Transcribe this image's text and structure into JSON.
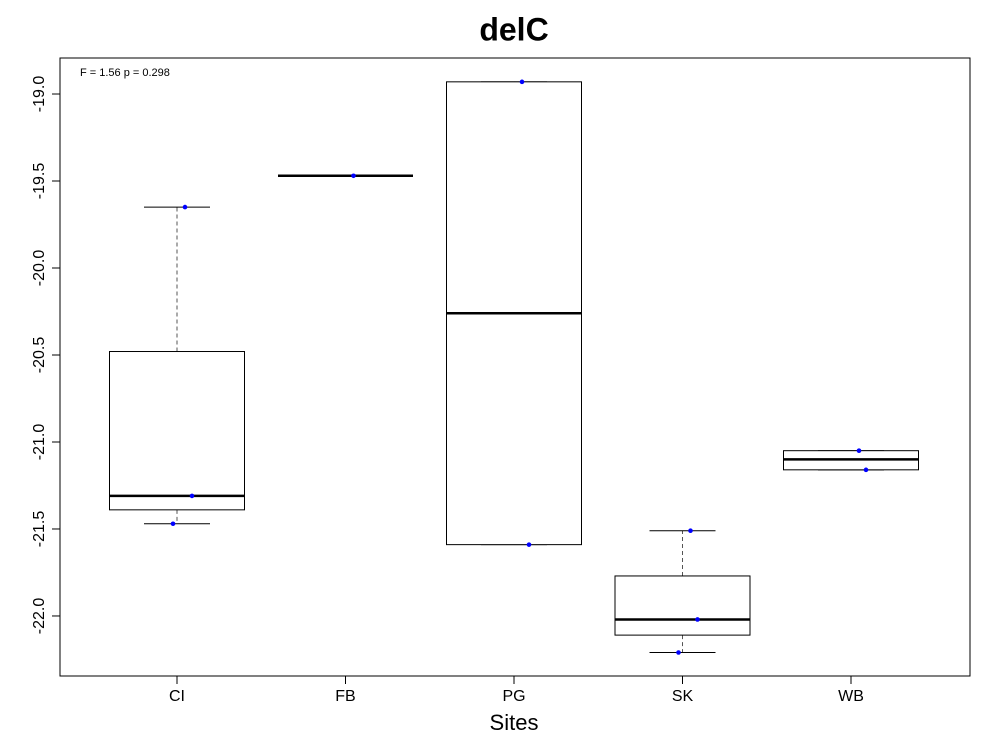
{
  "chart_data": {
    "type": "box",
    "title": "delC",
    "xlabel": "Sites",
    "annotation": "F = 1.56 p = 0.298",
    "categories": [
      "CI",
      "FB",
      "PG",
      "SK",
      "WB"
    ],
    "boxes": [
      {
        "whisker_low": -21.47,
        "q1": -21.39,
        "median": -21.31,
        "q3": -20.48,
        "whisker_high": -19.65,
        "points": [
          -19.65,
          -21.31,
          -21.47
        ]
      },
      {
        "whisker_low": -19.47,
        "q1": -19.47,
        "median": -19.47,
        "q3": -19.47,
        "whisker_high": -19.47,
        "points": [
          -19.47
        ]
      },
      {
        "whisker_low": -21.59,
        "q1": -21.59,
        "median": -20.26,
        "q3": -18.93,
        "whisker_high": -18.93,
        "points": [
          -18.93,
          -21.59
        ]
      },
      {
        "whisker_low": -22.21,
        "q1": -22.11,
        "median": -22.02,
        "q3": -21.77,
        "whisker_high": -21.51,
        "points": [
          -21.51,
          -22.02,
          -22.21
        ]
      },
      {
        "whisker_low": -21.16,
        "q1": -21.16,
        "median": -21.1,
        "q3": -21.05,
        "whisker_high": -21.05,
        "points": [
          -21.05,
          -21.16
        ]
      }
    ],
    "point_color": "#0000ff",
    "ylim": [
      -22.345,
      -18.793
    ],
    "yticks": [
      {
        "value": -19.0,
        "label": "-19.0"
      },
      {
        "value": -19.5,
        "label": "-19.5"
      },
      {
        "value": -20.0,
        "label": "-20.0"
      },
      {
        "value": -20.5,
        "label": "-20.5"
      },
      {
        "value": -21.0,
        "label": "-21.0"
      },
      {
        "value": -21.5,
        "label": "-21.5"
      },
      {
        "value": -22.0,
        "label": "-22.0"
      }
    ]
  }
}
